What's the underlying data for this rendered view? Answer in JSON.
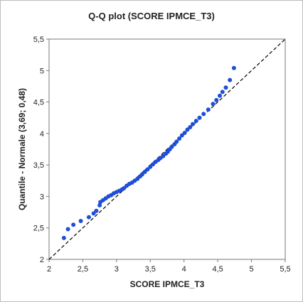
{
  "chart_data": {
    "type": "scatter",
    "title": "Q-Q plot (SCORE IPMCE_T3)",
    "xlabel": "SCORE IPMCE_T3",
    "ylabel": "Quantile - Normale (3,69; 0,48)",
    "xlim": [
      2,
      5.5
    ],
    "ylim": [
      2,
      5.5
    ],
    "x_ticks": [
      "2",
      "2,5",
      "3",
      "3,5",
      "4",
      "4,5",
      "5",
      "5,5"
    ],
    "y_ticks": [
      "2",
      "2,5",
      "3",
      "3,5",
      "4",
      "4,5",
      "5",
      "5,5"
    ],
    "grid": false,
    "legend": "none",
    "reference_line": {
      "x": [
        2,
        5.5
      ],
      "y": [
        2,
        5.5
      ],
      "style": "dashed",
      "color": "#000000"
    },
    "point_color": "#1f4fd6",
    "points": [
      [
        2.22,
        2.34
      ],
      [
        2.28,
        2.48
      ],
      [
        2.36,
        2.55
      ],
      [
        2.47,
        2.61
      ],
      [
        2.59,
        2.67
      ],
      [
        2.66,
        2.73
      ],
      [
        2.7,
        2.77
      ],
      [
        2.75,
        2.86
      ],
      [
        2.76,
        2.91
      ],
      [
        2.8,
        2.94
      ],
      [
        2.84,
        2.97
      ],
      [
        2.88,
        3.0
      ],
      [
        2.92,
        3.02
      ],
      [
        2.96,
        3.05
      ],
      [
        3.0,
        3.07
      ],
      [
        3.04,
        3.09
      ],
      [
        3.08,
        3.11
      ],
      [
        3.11,
        3.13
      ],
      [
        3.15,
        3.17
      ],
      [
        3.19,
        3.2
      ],
      [
        3.23,
        3.22
      ],
      [
        3.27,
        3.25
      ],
      [
        3.31,
        3.28
      ],
      [
        3.35,
        3.32
      ],
      [
        3.38,
        3.35
      ],
      [
        3.42,
        3.39
      ],
      [
        3.46,
        3.43
      ],
      [
        3.5,
        3.47
      ],
      [
        3.54,
        3.51
      ],
      [
        3.58,
        3.55
      ],
      [
        3.62,
        3.58
      ],
      [
        3.65,
        3.61
      ],
      [
        3.69,
        3.64
      ],
      [
        3.73,
        3.68
      ],
      [
        3.76,
        3.71
      ],
      [
        3.79,
        3.75
      ],
      [
        3.82,
        3.79
      ],
      [
        3.86,
        3.83
      ],
      [
        3.89,
        3.87
      ],
      [
        3.93,
        3.92
      ],
      [
        3.97,
        3.97
      ],
      [
        4.01,
        4.01
      ],
      [
        4.05,
        4.06
      ],
      [
        4.09,
        4.1
      ],
      [
        4.13,
        4.15
      ],
      [
        4.18,
        4.2
      ],
      [
        4.23,
        4.25
      ],
      [
        4.29,
        4.31
      ],
      [
        4.36,
        4.38
      ],
      [
        4.43,
        4.47
      ],
      [
        4.48,
        4.53
      ],
      [
        4.53,
        4.6
      ],
      [
        4.57,
        4.66
      ],
      [
        4.62,
        4.73
      ],
      [
        4.68,
        4.85
      ],
      [
        4.74,
        5.04
      ]
    ]
  }
}
